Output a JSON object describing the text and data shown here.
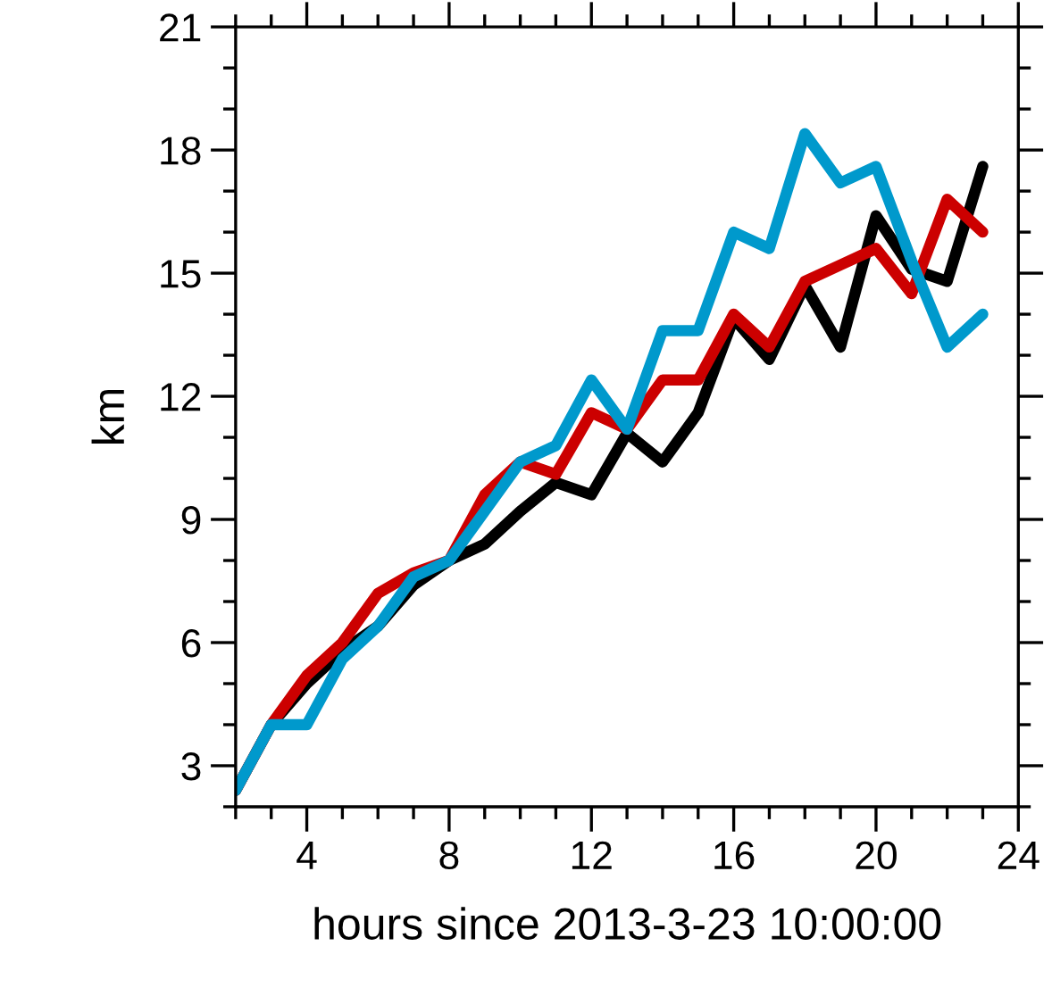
{
  "chart_data": {
    "type": "line",
    "xlabel": "hours since 2013-3-23 10:00:00",
    "ylabel": "km",
    "x": [
      2,
      3,
      4,
      5,
      6,
      7,
      8,
      9,
      10,
      11,
      12,
      13,
      14,
      15,
      16,
      17,
      18,
      19,
      20,
      21,
      22,
      23
    ],
    "series": [
      {
        "color": "#000000",
        "values": [
          2.4,
          4.0,
          5.0,
          5.8,
          6.4,
          7.4,
          8.0,
          8.4,
          9.2,
          9.9,
          9.6,
          11.1,
          10.4,
          11.6,
          13.9,
          12.9,
          14.7,
          13.2,
          16.4,
          15.1,
          14.8,
          17.6
        ]
      },
      {
        "color": "#cc0000",
        "values": [
          2.4,
          4.0,
          5.2,
          6.0,
          7.2,
          7.7,
          8.0,
          9.6,
          10.4,
          10.1,
          11.6,
          11.2,
          12.4,
          12.4,
          14.0,
          13.2,
          14.8,
          15.2,
          15.6,
          14.5,
          16.8,
          16.0
        ]
      },
      {
        "color": "#0099cc",
        "values": [
          2.4,
          4.0,
          4.0,
          5.6,
          6.4,
          7.6,
          8.0,
          9.2,
          10.4,
          10.8,
          12.4,
          11.2,
          13.6,
          13.6,
          16.0,
          15.6,
          18.4,
          17.2,
          17.6,
          15.3,
          13.2,
          14.0
        ]
      }
    ],
    "xlim": [
      2,
      24
    ],
    "xticks": [
      4,
      8,
      12,
      16,
      20,
      24
    ],
    "ylim": [
      2,
      21
    ],
    "yticks": [
      3,
      6,
      9,
      12,
      15,
      18,
      21
    ],
    "grid": false,
    "legend": false,
    "marker": "none",
    "line_style": "solid"
  }
}
